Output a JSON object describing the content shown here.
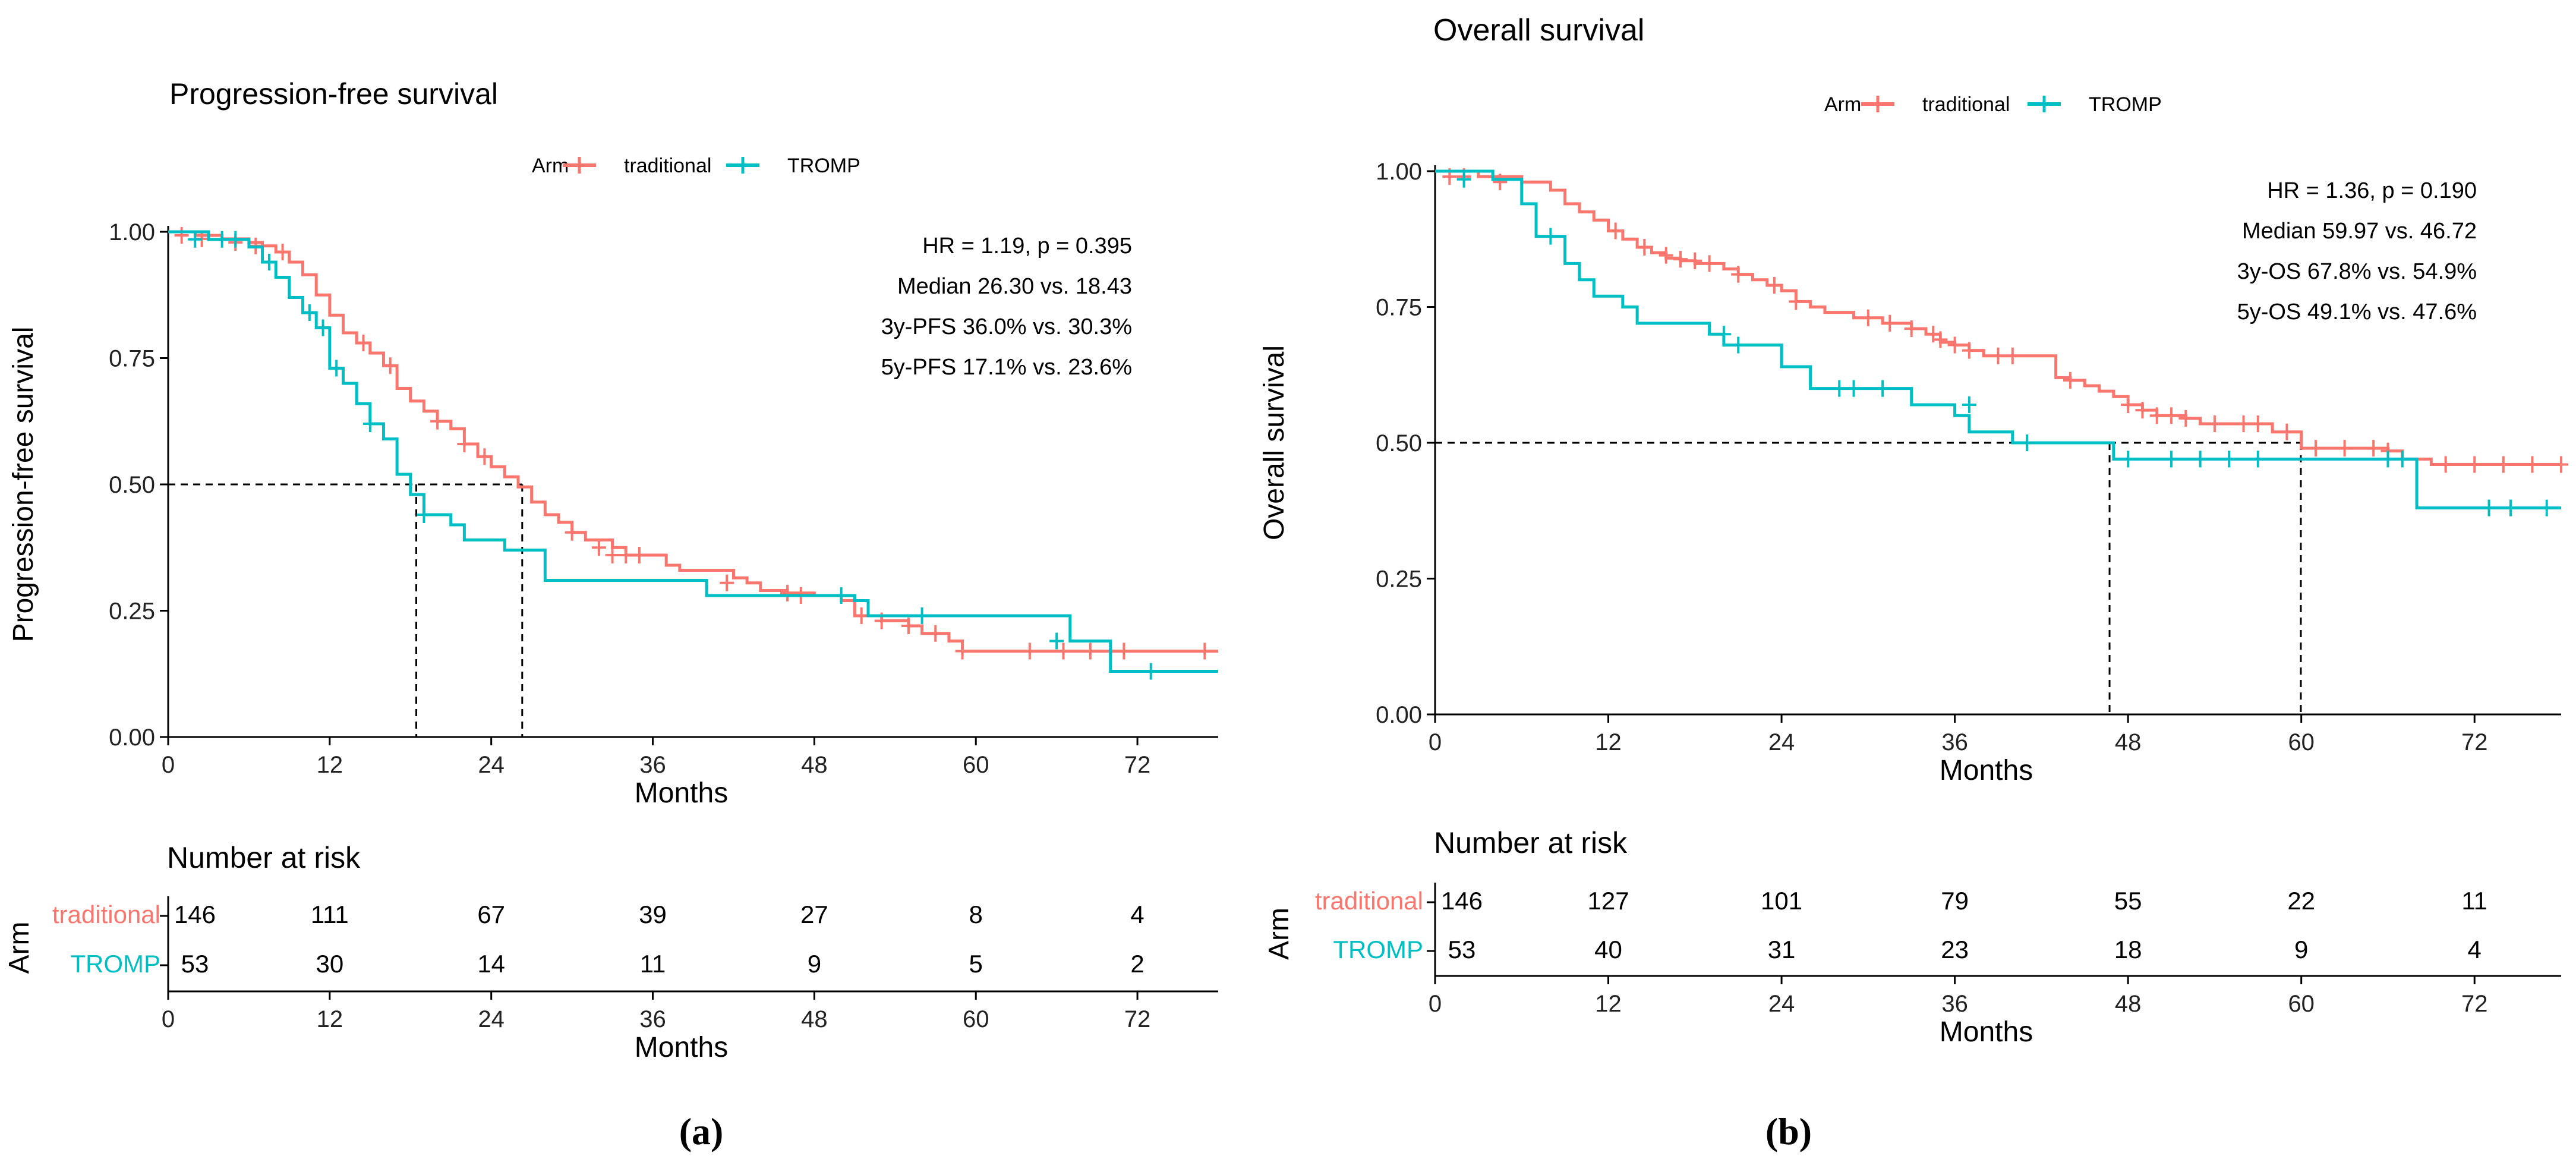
{
  "colors": {
    "traditional": "#F8766D",
    "tromp": "#00BFC4",
    "axis": "#000000",
    "ref": "#000000"
  },
  "chart_data": [
    {
      "id": "a",
      "type": "line",
      "title": "Progression-free survival",
      "legend": {
        "title": "Arm",
        "items": [
          "traditional",
          "TROMP"
        ],
        "placement": "top"
      },
      "xlabel": "Months",
      "ylabel": "Progression-free survival",
      "xlim": [
        0,
        78
      ],
      "ylim": [
        0,
        1
      ],
      "xticks": [
        0,
        12,
        24,
        36,
        48,
        60,
        72
      ],
      "yticks": [
        0,
        0.25,
        0.5,
        0.75,
        1
      ],
      "ytick_labels": [
        "0.00",
        "0.25",
        "0.50",
        "0.75",
        "1.00"
      ],
      "annotations": [
        "HR = 1.19, p = 0.395",
        "Median 26.30 vs. 18.43",
        "3y-PFS 36.0% vs. 30.3%",
        "5y-PFS 17.1% vs. 23.6%"
      ],
      "median_lines": [
        18.43,
        26.3
      ],
      "series": [
        {
          "name": "traditional",
          "steps": [
            [
              0,
              1
            ],
            [
              2,
              0.993
            ],
            [
              4,
              0.986
            ],
            [
              6,
              0.979
            ],
            [
              7,
              0.972
            ],
            [
              8,
              0.96
            ],
            [
              9,
              0.94
            ],
            [
              10,
              0.915
            ],
            [
              11,
              0.875
            ],
            [
              12,
              0.835
            ],
            [
              13,
              0.8
            ],
            [
              14,
              0.78
            ],
            [
              15,
              0.76
            ],
            [
              16,
              0.735
            ],
            [
              17,
              0.69
            ],
            [
              18,
              0.665
            ],
            [
              19,
              0.645
            ],
            [
              20,
              0.625
            ],
            [
              21,
              0.61
            ],
            [
              22,
              0.58
            ],
            [
              23,
              0.555
            ],
            [
              24,
              0.535
            ],
            [
              25,
              0.515
            ],
            [
              26,
              0.495
            ],
            [
              27,
              0.465
            ],
            [
              28,
              0.44
            ],
            [
              29,
              0.425
            ],
            [
              30,
              0.405
            ],
            [
              31,
              0.39
            ],
            [
              33,
              0.375
            ],
            [
              34,
              0.36
            ],
            [
              37,
              0.34
            ],
            [
              38,
              0.33
            ],
            [
              42,
              0.315
            ],
            [
              43,
              0.305
            ],
            [
              44,
              0.29
            ],
            [
              46,
              0.285
            ],
            [
              48,
              0.28
            ],
            [
              50,
              0.27
            ],
            [
              51,
              0.24
            ],
            [
              53,
              0.23
            ],
            [
              55,
              0.22
            ],
            [
              56,
              0.205
            ],
            [
              58,
              0.19
            ],
            [
              59,
              0.17
            ],
            [
              70,
              0.17
            ],
            [
              78,
              0.17
            ]
          ],
          "censors": [
            [
              1,
              0.993
            ],
            [
              2.5,
              0.986
            ],
            [
              5,
              0.979
            ],
            [
              6.5,
              0.972
            ],
            [
              8.5,
              0.96
            ],
            [
              14.5,
              0.78
            ],
            [
              16.5,
              0.735
            ],
            [
              20,
              0.625
            ],
            [
              22,
              0.58
            ],
            [
              23.5,
              0.555
            ],
            [
              30,
              0.405
            ],
            [
              32,
              0.375
            ],
            [
              33,
              0.36
            ],
            [
              34,
              0.36
            ],
            [
              35,
              0.36
            ],
            [
              41.5,
              0.305
            ],
            [
              46,
              0.285
            ],
            [
              47,
              0.28
            ],
            [
              51.5,
              0.24
            ],
            [
              53,
              0.23
            ],
            [
              55,
              0.22
            ],
            [
              57,
              0.205
            ],
            [
              59,
              0.17
            ],
            [
              64,
              0.17
            ],
            [
              66.5,
              0.17
            ],
            [
              68.5,
              0.17
            ],
            [
              71,
              0.17
            ],
            [
              77,
              0.17
            ]
          ]
        },
        {
          "name": "TROMP",
          "steps": [
            [
              0,
              1
            ],
            [
              3,
              0.985
            ],
            [
              6,
              0.97
            ],
            [
              7,
              0.94
            ],
            [
              8,
              0.91
            ],
            [
              9,
              0.87
            ],
            [
              10,
              0.84
            ],
            [
              11,
              0.81
            ],
            [
              12,
              0.73
            ],
            [
              13,
              0.7
            ],
            [
              14,
              0.66
            ],
            [
              15,
              0.62
            ],
            [
              16,
              0.59
            ],
            [
              17,
              0.52
            ],
            [
              18,
              0.48
            ],
            [
              19,
              0.44
            ],
            [
              21,
              0.42
            ],
            [
              22,
              0.39
            ],
            [
              25,
              0.37
            ],
            [
              28,
              0.31
            ],
            [
              40,
              0.28
            ],
            [
              51,
              0.27
            ],
            [
              52,
              0.24
            ],
            [
              67,
              0.19
            ],
            [
              70,
              0.13
            ],
            [
              78,
              0.13
            ]
          ],
          "censors": [
            [
              2,
              0.985
            ],
            [
              4,
              0.985
            ],
            [
              5,
              0.985
            ],
            [
              7.5,
              0.94
            ],
            [
              10.5,
              0.84
            ],
            [
              11.5,
              0.81
            ],
            [
              12.5,
              0.73
            ],
            [
              15,
              0.62
            ],
            [
              19,
              0.44
            ],
            [
              50,
              0.28
            ],
            [
              56,
              0.24
            ],
            [
              66,
              0.19
            ],
            [
              73,
              0.13
            ]
          ]
        }
      ],
      "risk_table": {
        "title": "Number at risk",
        "group_label": "Arm",
        "xlabel": "Months",
        "times": [
          0,
          12,
          24,
          36,
          48,
          60,
          72
        ],
        "rows": [
          {
            "label": "traditional",
            "values": [
              "146",
              "111",
              "67",
              "39",
              "27",
              "8",
              "4"
            ]
          },
          {
            "label": "TROMP",
            "values": [
              "53",
              "30",
              "14",
              "11",
              "9",
              "5",
              "2"
            ]
          }
        ]
      },
      "caption": "(a)"
    },
    {
      "id": "b",
      "type": "line",
      "title": "Overall survival",
      "legend": {
        "title": "Arm",
        "items": [
          "traditional",
          "TROMP"
        ],
        "placement": "top"
      },
      "xlabel": "Months",
      "ylabel": "Overall survival",
      "xlim": [
        0,
        78
      ],
      "ylim": [
        0,
        1
      ],
      "xticks": [
        0,
        12,
        24,
        36,
        48,
        60,
        72
      ],
      "yticks": [
        0,
        0.25,
        0.5,
        0.75,
        1
      ],
      "ytick_labels": [
        "0.00",
        "0.25",
        "0.50",
        "0.75",
        "1.00"
      ],
      "annotations": [
        "HR = 1.36, p = 0.190",
        "Median 59.97 vs. 46.72",
        "3y-OS 67.8% vs. 54.9%",
        "5y-OS 49.1% vs. 47.6%"
      ],
      "median_lines": [
        46.72,
        59.97
      ],
      "series": [
        {
          "name": "traditional",
          "steps": [
            [
              0,
              1
            ],
            [
              3,
              0.99
            ],
            [
              6,
              0.98
            ],
            [
              8,
              0.965
            ],
            [
              9,
              0.94
            ],
            [
              10,
              0.925
            ],
            [
              11,
              0.91
            ],
            [
              12,
              0.89
            ],
            [
              13,
              0.875
            ],
            [
              14,
              0.86
            ],
            [
              15,
              0.85
            ],
            [
              16,
              0.84
            ],
            [
              17,
              0.835
            ],
            [
              18,
              0.83
            ],
            [
              20,
              0.82
            ],
            [
              21,
              0.81
            ],
            [
              22,
              0.8
            ],
            [
              23,
              0.79
            ],
            [
              24,
              0.78
            ],
            [
              25,
              0.76
            ],
            [
              26,
              0.75
            ],
            [
              27,
              0.74
            ],
            [
              29,
              0.73
            ],
            [
              31,
              0.72
            ],
            [
              33,
              0.71
            ],
            [
              34,
              0.7
            ],
            [
              35,
              0.685
            ],
            [
              36,
              0.68
            ],
            [
              37,
              0.67
            ],
            [
              38,
              0.66
            ],
            [
              43,
              0.62
            ],
            [
              44,
              0.615
            ],
            [
              45,
              0.605
            ],
            [
              46,
              0.595
            ],
            [
              47,
              0.585
            ],
            [
              48,
              0.57
            ],
            [
              49,
              0.56
            ],
            [
              50,
              0.55
            ],
            [
              52,
              0.545
            ],
            [
              53,
              0.535
            ],
            [
              58,
              0.52
            ],
            [
              60,
              0.49
            ],
            [
              66,
              0.485
            ],
            [
              67,
              0.47
            ],
            [
              69,
              0.46
            ],
            [
              78,
              0.46
            ]
          ],
          "censors": [
            [
              1,
              0.99
            ],
            [
              2,
              0.99
            ],
            [
              4.5,
              0.98
            ],
            [
              12.5,
              0.89
            ],
            [
              14.5,
              0.86
            ],
            [
              16,
              0.845
            ],
            [
              17,
              0.838
            ],
            [
              18,
              0.835
            ],
            [
              19,
              0.83
            ],
            [
              21,
              0.81
            ],
            [
              23.5,
              0.79
            ],
            [
              25,
              0.76
            ],
            [
              30,
              0.73
            ],
            [
              31.5,
              0.72
            ],
            [
              33,
              0.71
            ],
            [
              34.5,
              0.7
            ],
            [
              35,
              0.69
            ],
            [
              36,
              0.68
            ],
            [
              37,
              0.67
            ],
            [
              39,
              0.66
            ],
            [
              40,
              0.66
            ],
            [
              44,
              0.615
            ],
            [
              48,
              0.57
            ],
            [
              49,
              0.56
            ],
            [
              50,
              0.55
            ],
            [
              51,
              0.55
            ],
            [
              52,
              0.545
            ],
            [
              54,
              0.535
            ],
            [
              56,
              0.535
            ],
            [
              57,
              0.535
            ],
            [
              59,
              0.52
            ],
            [
              61,
              0.49
            ],
            [
              63,
              0.49
            ],
            [
              65,
              0.49
            ],
            [
              66,
              0.485
            ],
            [
              70,
              0.46
            ],
            [
              72,
              0.46
            ],
            [
              74,
              0.46
            ],
            [
              76,
              0.46
            ],
            [
              78,
              0.46
            ]
          ],
          "censor_ticks_only": true
        },
        {
          "name": "TROMP",
          "steps": [
            [
              0,
              1
            ],
            [
              4,
              0.985
            ],
            [
              6,
              0.94
            ],
            [
              7,
              0.88
            ],
            [
              9,
              0.83
            ],
            [
              10,
              0.8
            ],
            [
              11,
              0.77
            ],
            [
              13,
              0.75
            ],
            [
              14,
              0.72
            ],
            [
              19,
              0.7
            ],
            [
              20,
              0.68
            ],
            [
              24,
              0.64
            ],
            [
              26,
              0.6
            ],
            [
              33,
              0.57
            ],
            [
              36,
              0.55
            ],
            [
              37,
              0.52
            ],
            [
              40,
              0.5
            ],
            [
              47,
              0.47
            ],
            [
              68,
              0.38
            ],
            [
              78,
              0.38
            ]
          ],
          "censors": [
            [
              2,
              0.985
            ],
            [
              8,
              0.88
            ],
            [
              20,
              0.7
            ],
            [
              21,
              0.68
            ],
            [
              28,
              0.6
            ],
            [
              29,
              0.6
            ],
            [
              31,
              0.6
            ],
            [
              37,
              0.57
            ],
            [
              41,
              0.5
            ],
            [
              48,
              0.47
            ],
            [
              51,
              0.47
            ],
            [
              53,
              0.47
            ],
            [
              55,
              0.47
            ],
            [
              57,
              0.47
            ],
            [
              66,
              0.47
            ],
            [
              67,
              0.47
            ],
            [
              73,
              0.38
            ],
            [
              74.5,
              0.38
            ],
            [
              77,
              0.38
            ]
          ]
        }
      ],
      "risk_table": {
        "title": "Number at risk",
        "group_label": "Arm",
        "xlabel": "Months",
        "times": [
          0,
          12,
          24,
          36,
          48,
          60,
          72
        ],
        "rows": [
          {
            "label": "traditional",
            "values": [
              "146",
              "127",
              "101",
              "79",
              "55",
              "22",
              "11"
            ]
          },
          {
            "label": "TROMP",
            "values": [
              "53",
              "40",
              "31",
              "23",
              "18",
              "9",
              "4"
            ]
          }
        ]
      },
      "caption": "(b)"
    }
  ]
}
